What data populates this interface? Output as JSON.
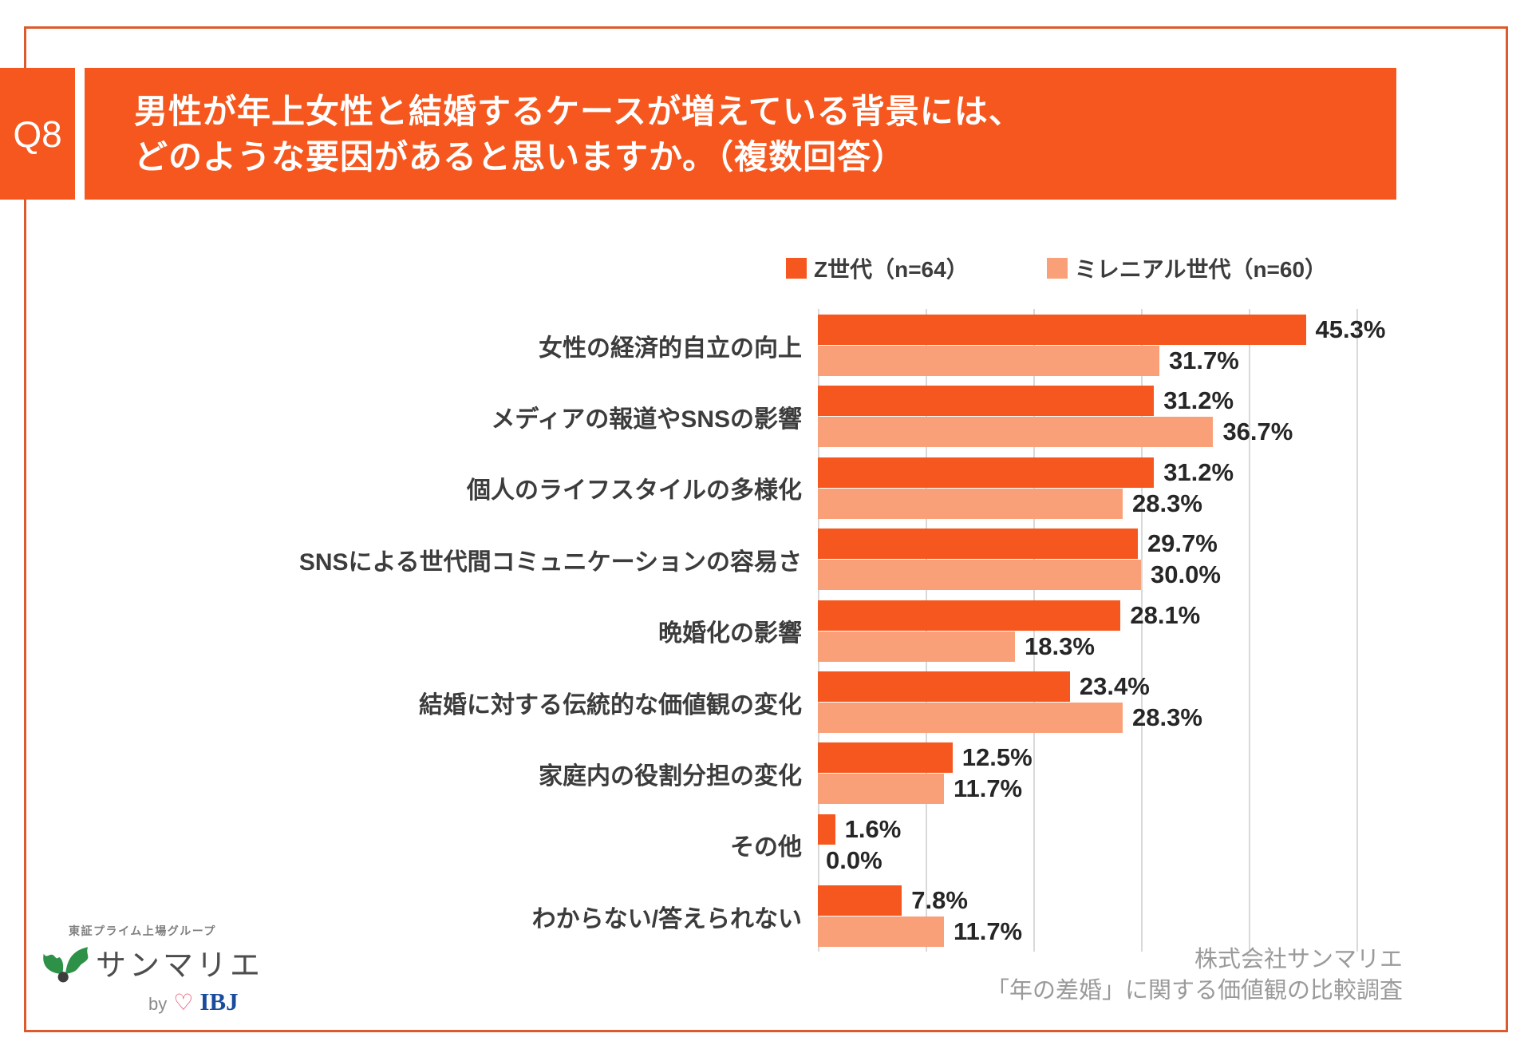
{
  "header": {
    "question_label": "Q8",
    "title_line1": "男性が年上女性と結婚するケースが増えている背景には、",
    "title_line2": "どのような要因があると思いますか。（複数回答）"
  },
  "chart_data": {
    "type": "bar",
    "orientation": "horizontal",
    "title": "",
    "xlabel": "",
    "ylabel": "",
    "xlim": [
      0,
      50
    ],
    "gridline_interval": 10,
    "grid": true,
    "legend_position": "top-right",
    "value_suffix": "%",
    "categories": [
      "女性の経済的自立の向上",
      "メディアの報道やSNSの影響",
      "個人のライフスタイルの多様化",
      "SNSによる世代間コミュニケーションの容易さ",
      "晩婚化の影響",
      "結婚に対する伝統的な価値観の変化",
      "家庭内の役割分担の変化",
      "その他",
      "わからない/答えられない"
    ],
    "series": [
      {
        "name": "Z世代（n=64）",
        "color": "#F5571E",
        "values": [
          45.3,
          31.2,
          31.2,
          29.7,
          28.1,
          23.4,
          12.5,
          1.6,
          7.8
        ]
      },
      {
        "name": "ミレニアル世代（n=60）",
        "color": "#F9A078",
        "values": [
          31.7,
          36.7,
          28.3,
          30.0,
          18.3,
          28.3,
          11.7,
          0.0,
          11.7
        ]
      }
    ]
  },
  "footer": {
    "logo": {
      "group_text": "東証プライム上場グループ",
      "brand_text": "サンマリエ",
      "by_text": "by",
      "heart_icon": "heart-outline-icon",
      "ibj_text": "IBJ"
    },
    "source_line1": "株式会社サンマリエ",
    "source_line2": "「年の差婚」に関する価値観の比較調査"
  },
  "colors": {
    "accent": "#F5571E",
    "bar_light": "#F9A078",
    "frame_border": "#DC5A2B",
    "gridline": "#D9D9D9"
  }
}
